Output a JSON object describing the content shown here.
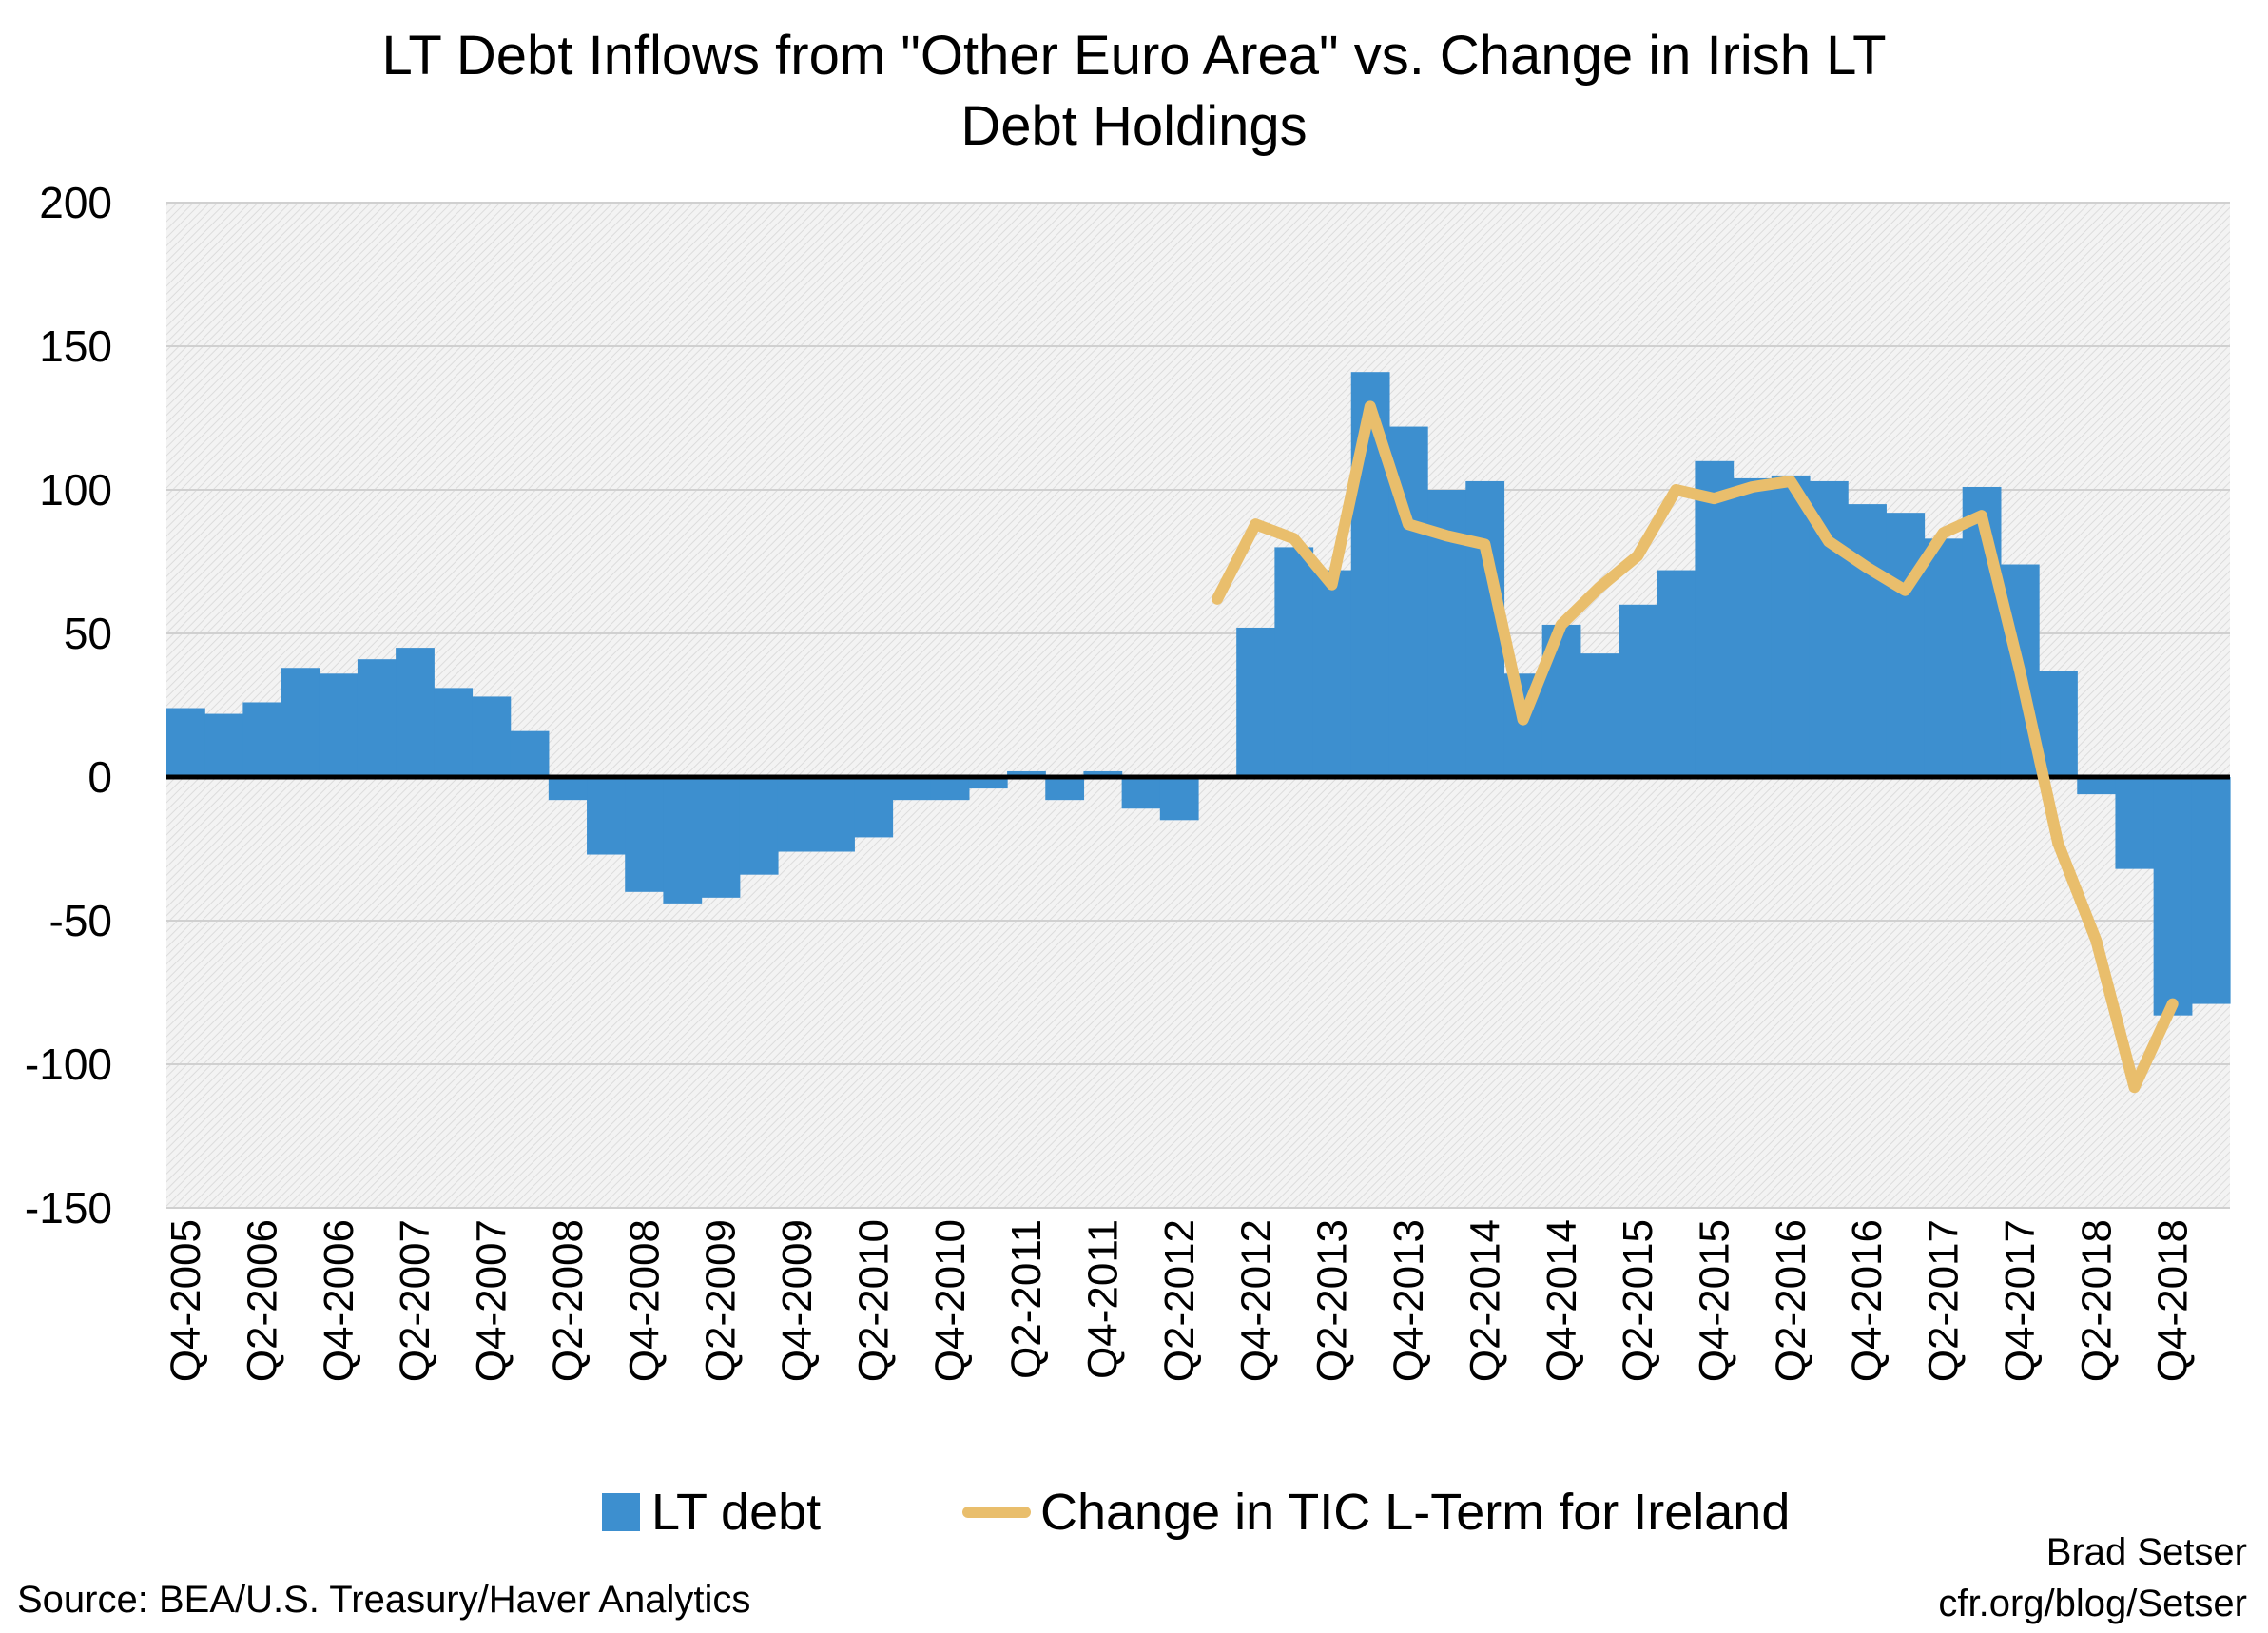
{
  "chart_data": {
    "type": "bar",
    "title_lines": [
      "LT Debt Inflows from \"Other Euro Area\" vs. Change in Irish LT",
      "Debt Holdings"
    ],
    "categories": [
      "Q4-2005",
      "Q1-2006",
      "Q2-2006",
      "Q3-2006",
      "Q4-2006",
      "Q1-2007",
      "Q2-2007",
      "Q3-2007",
      "Q4-2007",
      "Q1-2008",
      "Q2-2008",
      "Q3-2008",
      "Q4-2008",
      "Q1-2009",
      "Q2-2009",
      "Q3-2009",
      "Q4-2009",
      "Q1-2010",
      "Q2-2010",
      "Q3-2010",
      "Q4-2010",
      "Q1-2011",
      "Q2-2011",
      "Q3-2011",
      "Q4-2011",
      "Q1-2012",
      "Q2-2012",
      "Q3-2012",
      "Q4-2012",
      "Q1-2013",
      "Q2-2013",
      "Q3-2013",
      "Q4-2013",
      "Q1-2014",
      "Q2-2014",
      "Q3-2014",
      "Q4-2014",
      "Q1-2015",
      "Q2-2015",
      "Q3-2015",
      "Q4-2015",
      "Q1-2016",
      "Q2-2016",
      "Q3-2016",
      "Q4-2016",
      "Q1-2017",
      "Q2-2017",
      "Q3-2017",
      "Q4-2017",
      "Q1-2018",
      "Q2-2018",
      "Q3-2018",
      "Q4-2018",
      "Q1-2019"
    ],
    "tick_labels": [
      "Q4-2005",
      "Q2-2006",
      "Q4-2006",
      "Q2-2007",
      "Q4-2007",
      "Q2-2008",
      "Q4-2008",
      "Q2-2009",
      "Q4-2009",
      "Q2-2010",
      "Q4-2010",
      "Q2-2011",
      "Q4-2011",
      "Q2-2012",
      "Q4-2012",
      "Q2-2013",
      "Q4-2013",
      "Q2-2014",
      "Q4-2014",
      "Q2-2015",
      "Q4-2015",
      "Q2-2016",
      "Q4-2016",
      "Q2-2017",
      "Q4-2017",
      "Q2-2018",
      "Q4-2018"
    ],
    "series": [
      {
        "name": "LT debt",
        "kind": "bar",
        "color": "#3d8fcf",
        "values": [
          24,
          22,
          26,
          38,
          36,
          41,
          45,
          31,
          28,
          16,
          -8,
          -27,
          -40,
          -44,
          -42,
          -34,
          -26,
          -26,
          -21,
          -8,
          -8,
          -4,
          2,
          -8,
          2,
          -11,
          -15,
          0,
          52,
          80,
          72,
          141,
          122,
          100,
          103,
          36,
          53,
          43,
          60,
          72,
          110,
          104,
          105,
          103,
          95,
          92,
          83,
          101,
          74,
          37,
          -6,
          -32,
          -83,
          -79
        ]
      },
      {
        "name": "Change in TIC L-Term for Ireland",
        "kind": "line",
        "color": "#e9be6c",
        "values": [
          null,
          null,
          null,
          null,
          null,
          null,
          null,
          null,
          null,
          null,
          null,
          null,
          null,
          null,
          null,
          null,
          null,
          null,
          null,
          null,
          null,
          null,
          null,
          null,
          null,
          null,
          null,
          62,
          88,
          83,
          67,
          129,
          88,
          84,
          81,
          20,
          53,
          66,
          77,
          100,
          97,
          101,
          103,
          82,
          73,
          65,
          85,
          91,
          37,
          -23,
          -57,
          -108,
          -79,
          null
        ]
      }
    ],
    "ylim": [
      -150,
      200
    ],
    "yticks": [
      "200",
      "150",
      "100",
      "50",
      "0",
      "-50",
      "-100",
      "-150"
    ],
    "ytick_values": [
      200,
      150,
      100,
      50,
      0,
      -50,
      -100,
      -150
    ],
    "grid": true,
    "legend_position": "bottom"
  },
  "source": "Source: BEA/U.S. Treasury/Haver Analytics",
  "credit_lines": [
    "Brad Setser",
    "cfr.org/blog/Setser"
  ]
}
